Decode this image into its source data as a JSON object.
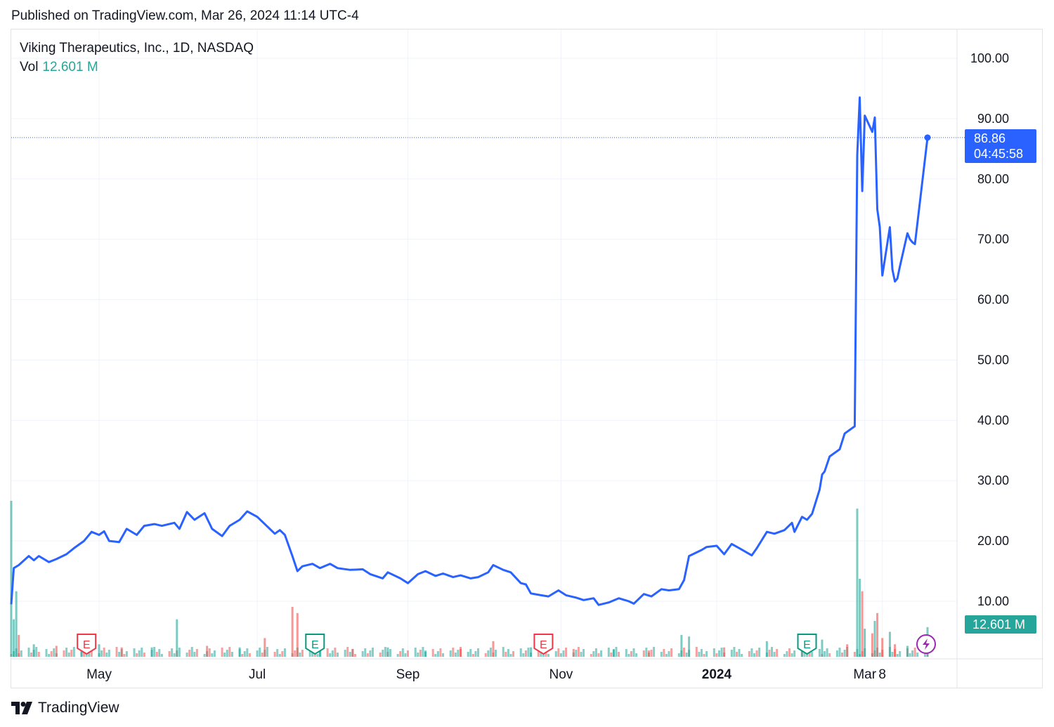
{
  "published": "Published on TradingView.com, Mar 26, 2024 11:14 UTC-4",
  "legend": {
    "title": "Viking Therapeutics, Inc., 1D, NASDAQ",
    "vol_label": "Vol",
    "vol_value": "12.601 M"
  },
  "brand": {
    "name": "TradingView",
    "logo_icon": "tradingview-logo-icon"
  },
  "colors": {
    "line": "#2962ff",
    "grid": "#f0f3fa",
    "vol_up": "#26a69a",
    "vol_down": "#ef5350",
    "price_badge": "#2962ff",
    "vol_badge": "#26a69a",
    "earnings_red": "#f23645",
    "earnings_green": "#089981",
    "dividend_purple": "#9c27b0"
  },
  "chart_data": {
    "type": "line",
    "title": "Viking Therapeutics, Inc., 1D, NASDAQ",
    "x_range": [
      "2023-03-27",
      "2024-03-26"
    ],
    "ylim": [
      0,
      105
    ],
    "y_ticks": [
      "100.00",
      "90.00",
      "80.00",
      "70.00",
      "60.00",
      "50.00",
      "40.00",
      "30.00",
      "20.00",
      "10.00"
    ],
    "x_ticks": [
      {
        "label": "May",
        "date": "2023-05-01"
      },
      {
        "label": "Jul",
        "date": "2023-07-03"
      },
      {
        "label": "Sep",
        "date": "2023-09-01"
      },
      {
        "label": "Nov",
        "date": "2023-11-01"
      },
      {
        "label": "2024",
        "date": "2024-01-02",
        "bold": true
      },
      {
        "label": "Mar",
        "date": "2024-03-01"
      },
      {
        "label": "8",
        "date": "2024-03-08"
      }
    ],
    "last_price": 86.86,
    "last_price_label": "86.86",
    "countdown": "04:45:58",
    "volume_last": "12.601 M",
    "grid": true,
    "series": [
      {
        "points": [
          [
            "2023-03-27",
            9.5
          ],
          [
            "2023-03-28",
            15.5
          ],
          [
            "2023-03-30",
            16.0
          ],
          [
            "2023-04-03",
            17.5
          ],
          [
            "2023-04-05",
            16.8
          ],
          [
            "2023-04-07",
            17.5
          ],
          [
            "2023-04-11",
            16.5
          ],
          [
            "2023-04-14",
            17.0
          ],
          [
            "2023-04-18",
            17.8
          ],
          [
            "2023-04-21",
            18.8
          ],
          [
            "2023-04-25",
            20.0
          ],
          [
            "2023-04-28",
            21.5
          ],
          [
            "2023-05-01",
            21.0
          ],
          [
            "2023-05-03",
            21.6
          ],
          [
            "2023-05-05",
            20.0
          ],
          [
            "2023-05-09",
            19.8
          ],
          [
            "2023-05-12",
            22.0
          ],
          [
            "2023-05-16",
            21.0
          ],
          [
            "2023-05-19",
            22.5
          ],
          [
            "2023-05-23",
            22.8
          ],
          [
            "2023-05-26",
            22.5
          ],
          [
            "2023-05-31",
            23.0
          ],
          [
            "2023-06-02",
            22.0
          ],
          [
            "2023-06-05",
            24.8
          ],
          [
            "2023-06-08",
            23.5
          ],
          [
            "2023-06-12",
            24.6
          ],
          [
            "2023-06-15",
            22.0
          ],
          [
            "2023-06-19",
            20.8
          ],
          [
            "2023-06-22",
            22.5
          ],
          [
            "2023-06-26",
            23.5
          ],
          [
            "2023-06-29",
            24.9
          ],
          [
            "2023-07-03",
            24.0
          ],
          [
            "2023-07-06",
            22.8
          ],
          [
            "2023-07-10",
            21.2
          ],
          [
            "2023-07-12",
            21.8
          ],
          [
            "2023-07-14",
            21.0
          ],
          [
            "2023-07-17",
            17.5
          ],
          [
            "2023-07-19",
            15.0
          ],
          [
            "2023-07-21",
            15.8
          ],
          [
            "2023-07-25",
            16.2
          ],
          [
            "2023-07-28",
            15.5
          ],
          [
            "2023-08-01",
            16.2
          ],
          [
            "2023-08-04",
            15.5
          ],
          [
            "2023-08-09",
            15.2
          ],
          [
            "2023-08-14",
            15.3
          ],
          [
            "2023-08-17",
            14.5
          ],
          [
            "2023-08-22",
            13.8
          ],
          [
            "2023-08-24",
            14.8
          ],
          [
            "2023-08-29",
            13.8
          ],
          [
            "2023-09-01",
            13.0
          ],
          [
            "2023-09-05",
            14.5
          ],
          [
            "2023-09-08",
            15.0
          ],
          [
            "2023-09-12",
            14.2
          ],
          [
            "2023-09-15",
            14.6
          ],
          [
            "2023-09-19",
            14.0
          ],
          [
            "2023-09-22",
            14.3
          ],
          [
            "2023-09-26",
            13.8
          ],
          [
            "2023-09-29",
            14.0
          ],
          [
            "2023-10-03",
            14.8
          ],
          [
            "2023-10-05",
            16.0
          ],
          [
            "2023-10-09",
            15.2
          ],
          [
            "2023-10-12",
            14.8
          ],
          [
            "2023-10-16",
            13.0
          ],
          [
            "2023-10-18",
            12.8
          ],
          [
            "2023-10-20",
            11.3
          ],
          [
            "2023-10-24",
            11.0
          ],
          [
            "2023-10-27",
            10.8
          ],
          [
            "2023-10-31",
            11.8
          ],
          [
            "2023-11-03",
            11.0
          ],
          [
            "2023-11-07",
            10.6
          ],
          [
            "2023-11-10",
            10.2
          ],
          [
            "2023-11-14",
            10.5
          ],
          [
            "2023-11-16",
            9.4
          ],
          [
            "2023-11-20",
            9.8
          ],
          [
            "2023-11-24",
            10.5
          ],
          [
            "2023-11-28",
            10.0
          ],
          [
            "2023-11-30",
            9.6
          ],
          [
            "2023-12-04",
            11.2
          ],
          [
            "2023-12-07",
            10.8
          ],
          [
            "2023-12-11",
            12.0
          ],
          [
            "2023-12-14",
            11.8
          ],
          [
            "2023-12-18",
            12.0
          ],
          [
            "2023-12-20",
            13.5
          ],
          [
            "2023-12-22",
            17.5
          ],
          [
            "2023-12-27",
            18.5
          ],
          [
            "2023-12-29",
            19.0
          ],
          [
            "2024-01-02",
            19.2
          ],
          [
            "2024-01-05",
            17.8
          ],
          [
            "2024-01-08",
            19.5
          ],
          [
            "2024-01-11",
            18.8
          ],
          [
            "2024-01-16",
            17.6
          ],
          [
            "2024-01-18",
            18.8
          ],
          [
            "2024-01-22",
            21.5
          ],
          [
            "2024-01-25",
            21.2
          ],
          [
            "2024-01-29",
            21.8
          ],
          [
            "2024-02-01",
            23.0
          ],
          [
            "2024-02-02",
            21.5
          ],
          [
            "2024-02-05",
            24.0
          ],
          [
            "2024-02-07",
            23.5
          ],
          [
            "2024-02-09",
            24.5
          ],
          [
            "2024-02-12",
            28.5
          ],
          [
            "2024-02-13",
            31.0
          ],
          [
            "2024-02-14",
            31.5
          ],
          [
            "2024-02-16",
            34.0
          ],
          [
            "2024-02-20",
            35.2
          ],
          [
            "2024-02-22",
            37.8
          ],
          [
            "2024-02-26",
            39.0
          ],
          [
            "2024-02-27",
            84.0
          ],
          [
            "2024-02-28",
            93.5
          ],
          [
            "2024-02-29",
            78.0
          ],
          [
            "2024-03-01",
            90.5
          ],
          [
            "2024-03-04",
            87.8
          ],
          [
            "2024-03-05",
            90.2
          ],
          [
            "2024-03-06",
            75.0
          ],
          [
            "2024-03-07",
            72.0
          ],
          [
            "2024-03-08",
            64.0
          ],
          [
            "2024-03-11",
            72.0
          ],
          [
            "2024-03-12",
            65.0
          ],
          [
            "2024-03-13",
            63.0
          ],
          [
            "2024-03-14",
            63.5
          ],
          [
            "2024-03-15",
            65.5
          ],
          [
            "2024-03-18",
            71.0
          ],
          [
            "2024-03-19",
            70.0
          ],
          [
            "2024-03-20",
            69.5
          ],
          [
            "2024-03-21",
            69.2
          ],
          [
            "2024-03-26",
            86.86
          ]
        ]
      }
    ],
    "volume_bars_relative": [
      [
        "2023-03-27",
        1.0,
        "up"
      ],
      [
        "2023-03-28",
        0.24,
        "up"
      ],
      [
        "2023-03-29",
        0.42,
        "up"
      ],
      [
        "2023-03-30",
        0.14,
        "down"
      ],
      [
        "2023-04-05",
        0.08,
        "up"
      ],
      [
        "2023-04-14",
        0.07,
        "down"
      ],
      [
        "2023-04-24",
        0.09,
        "up"
      ],
      [
        "2023-05-01",
        0.08,
        "up"
      ],
      [
        "2023-05-10",
        0.06,
        "down"
      ],
      [
        "2023-05-22",
        0.06,
        "up"
      ],
      [
        "2023-06-01",
        0.24,
        "up"
      ],
      [
        "2023-06-13",
        0.07,
        "down"
      ],
      [
        "2023-06-26",
        0.06,
        "up"
      ],
      [
        "2023-07-06",
        0.12,
        "down"
      ],
      [
        "2023-07-17",
        0.32,
        "down"
      ],
      [
        "2023-07-19",
        0.28,
        "down"
      ],
      [
        "2023-07-28",
        0.05,
        "up"
      ],
      [
        "2023-08-10",
        0.05,
        "down"
      ],
      [
        "2023-08-24",
        0.06,
        "up"
      ],
      [
        "2023-09-08",
        0.04,
        "up"
      ],
      [
        "2023-09-22",
        0.05,
        "down"
      ],
      [
        "2023-10-05",
        0.1,
        "down"
      ],
      [
        "2023-10-20",
        0.06,
        "up"
      ],
      [
        "2023-11-06",
        0.05,
        "down"
      ],
      [
        "2023-11-22",
        0.05,
        "up"
      ],
      [
        "2023-12-06",
        0.04,
        "down"
      ],
      [
        "2023-12-19",
        0.14,
        "up"
      ],
      [
        "2023-12-22",
        0.13,
        "up"
      ],
      [
        "2024-01-05",
        0.06,
        "down"
      ],
      [
        "2024-01-22",
        0.1,
        "up"
      ],
      [
        "2024-02-05",
        0.08,
        "up"
      ],
      [
        "2024-02-13",
        0.11,
        "up"
      ],
      [
        "2024-02-23",
        0.08,
        "down"
      ],
      [
        "2024-02-27",
        0.95,
        "up"
      ],
      [
        "2024-02-28",
        0.5,
        "up"
      ],
      [
        "2024-02-29",
        0.42,
        "down"
      ],
      [
        "2024-03-01",
        0.18,
        "up"
      ],
      [
        "2024-03-04",
        0.15,
        "down"
      ],
      [
        "2024-03-05",
        0.23,
        "up"
      ],
      [
        "2024-03-06",
        0.28,
        "down"
      ],
      [
        "2024-03-08",
        0.12,
        "down"
      ],
      [
        "2024-03-11",
        0.16,
        "up"
      ],
      [
        "2024-03-13",
        0.08,
        "down"
      ],
      [
        "2024-03-18",
        0.07,
        "up"
      ],
      [
        "2024-03-26",
        0.19,
        "up"
      ]
    ],
    "event_markers": [
      {
        "type": "earnings",
        "date": "2023-04-26",
        "color": "red",
        "label": "E"
      },
      {
        "type": "earnings",
        "date": "2023-07-26",
        "color": "green",
        "label": "E"
      },
      {
        "type": "earnings",
        "date": "2023-10-25",
        "color": "red",
        "label": "E"
      },
      {
        "type": "earnings",
        "date": "2024-02-07",
        "color": "green",
        "label": "E"
      },
      {
        "type": "dividend",
        "date": "2024-03-26",
        "icon": "lightning-icon"
      }
    ]
  }
}
